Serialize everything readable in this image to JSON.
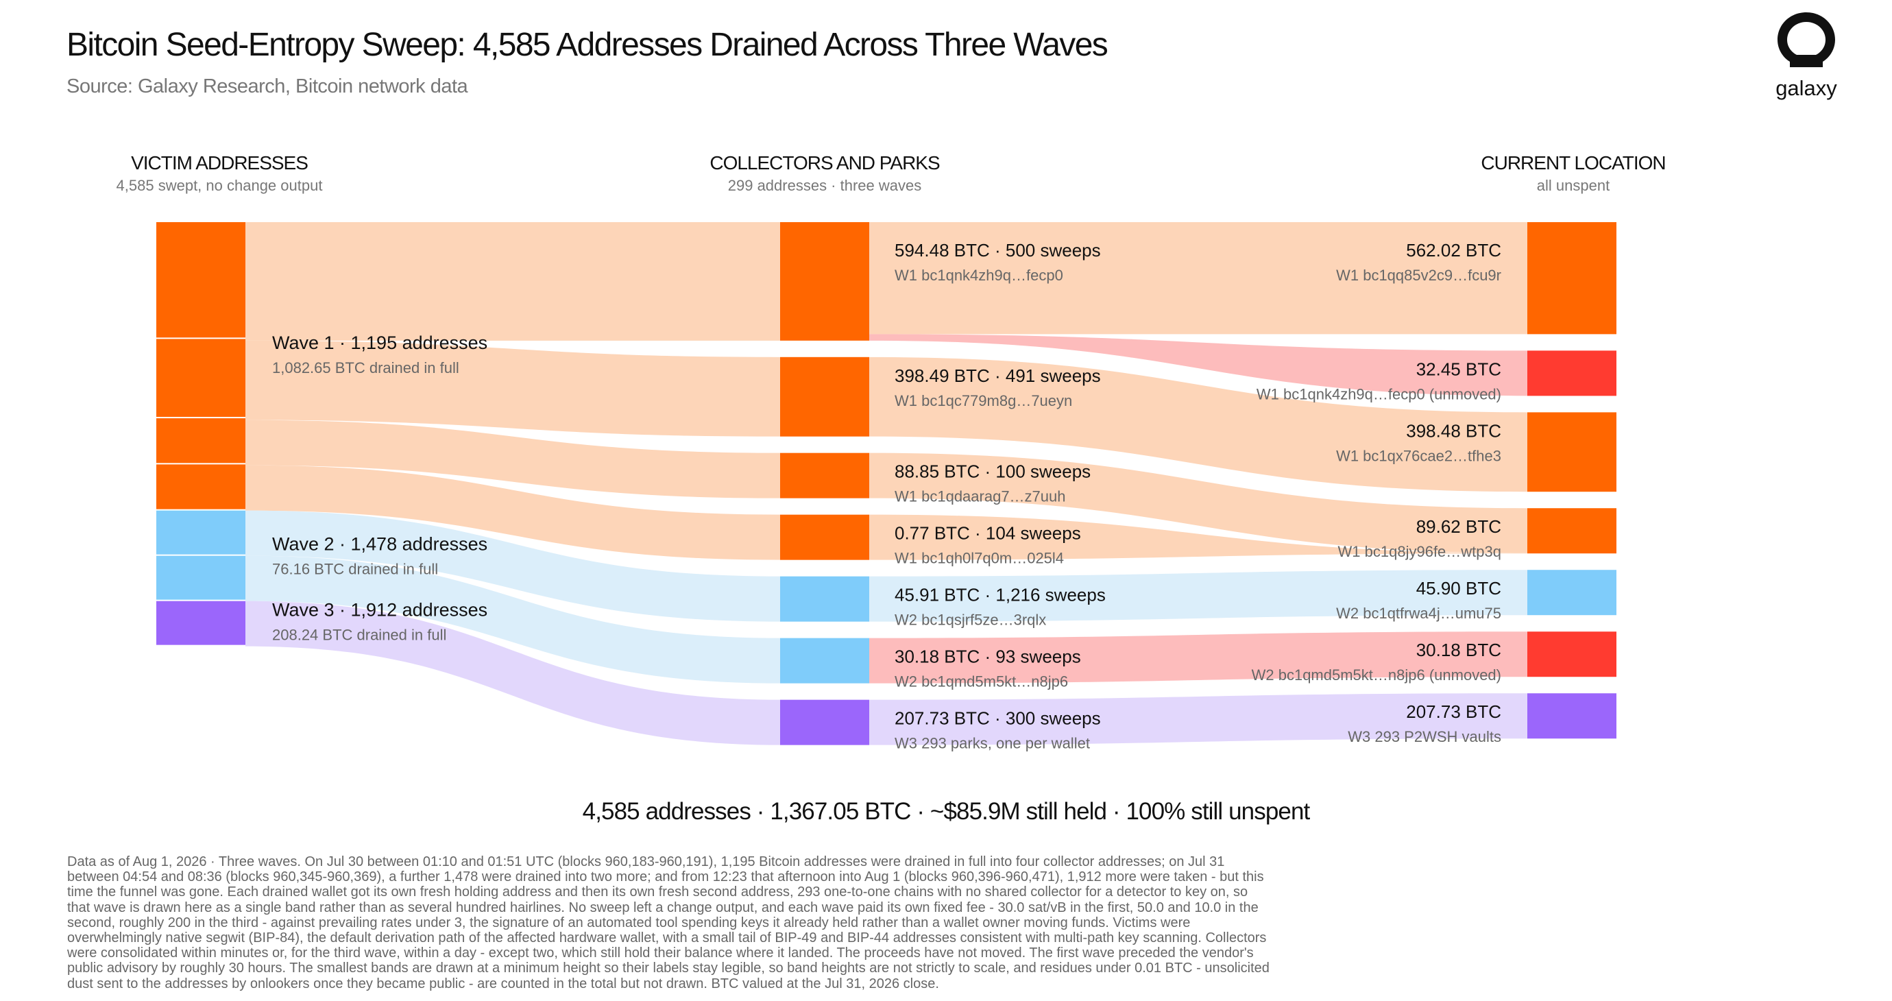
{
  "header": {
    "title": "Bitcoin Seed-Entropy Sweep: 4,585 Addresses Drained Across Three Waves",
    "subtitle": "Source: Galaxy Research, Bitcoin network data",
    "logo_text": "galaxy"
  },
  "columns": [
    {
      "title": "VICTIM ADDRESSES",
      "subtitle": "4,585 swept, no change output"
    },
    {
      "title": "COLLECTORS AND PARKS",
      "subtitle": "299 addresses · three waves"
    },
    {
      "title": "CURRENT LOCATION",
      "subtitle": "all unspent"
    }
  ],
  "colors": {
    "wave1_node": "#ff6600",
    "wave1_band": "#fdd5b8",
    "wave2_node": "#7fccfa",
    "wave2_band": "#dbeefa",
    "wave3_node": "#9b66fb",
    "wave3_band": "#e2d7fc",
    "unmoved_node": "#ff3b30",
    "unmoved_band": "#fdbcbc"
  },
  "chart_data": {
    "type": "sankey",
    "unit": "BTC",
    "waves": [
      {
        "id": "W1",
        "label": "Wave 1 · 1,195 addresses",
        "detail": "1,082.65 BTC drained in full",
        "addresses": 1195,
        "btc": 1082.65
      },
      {
        "id": "W2",
        "label": "Wave 2 · 1,478 addresses",
        "detail": "76.16 BTC drained in full",
        "addresses": 1478,
        "btc": 76.16
      },
      {
        "id": "W3",
        "label": "Wave 3 · 1,912 addresses",
        "detail": "208.24 BTC drained in full",
        "addresses": 1912,
        "btc": 208.24
      }
    ],
    "collectors": [
      {
        "wave": "W1",
        "btc": 594.48,
        "sweeps": 500,
        "label": "594.48 BTC · 500 sweeps",
        "sub": "W1 bc1qnk4zh9q…fecp0"
      },
      {
        "wave": "W1",
        "btc": 398.49,
        "sweeps": 491,
        "label": "398.49 BTC · 491 sweeps",
        "sub": "W1 bc1qc779m8g…7ueyn"
      },
      {
        "wave": "W1",
        "btc": 88.85,
        "sweeps": 100,
        "label": "88.85 BTC · 100 sweeps",
        "sub": "W1 bc1qdaarag7…z7uuh"
      },
      {
        "wave": "W1",
        "btc": 0.77,
        "sweeps": 104,
        "label": "0.77 BTC · 104 sweeps",
        "sub": "W1 bc1qh0l7q0m…025l4"
      },
      {
        "wave": "W2",
        "btc": 45.91,
        "sweeps": 1216,
        "label": "45.91 BTC · 1,216 sweeps",
        "sub": "W2 bc1qsjrf5ze…3rqlx"
      },
      {
        "wave": "W2",
        "btc": 30.18,
        "sweeps": 93,
        "label": "30.18 BTC · 93 sweeps",
        "sub": "W2 bc1qmd5m5kt…n8jp6"
      },
      {
        "wave": "W3",
        "btc": 207.73,
        "sweeps": 300,
        "label": "207.73 BTC · 300 sweeps",
        "sub": "W3 293 parks, one per wallet"
      }
    ],
    "destinations": [
      {
        "wave": "W1",
        "btc": 562.02,
        "label": "562.02 BTC",
        "sub": "W1 bc1qq85v2c9…fcu9r"
      },
      {
        "wave": "W1",
        "btc": 32.45,
        "unmoved": true,
        "label": "32.45 BTC",
        "sub": "W1 bc1qnk4zh9q…fecp0 (unmoved)"
      },
      {
        "wave": "W1",
        "btc": 398.48,
        "label": "398.48 BTC",
        "sub": "W1 bc1qx76cae2…tfhe3"
      },
      {
        "wave": "W1",
        "btc": 89.62,
        "label": "89.62 BTC",
        "sub": "W1 bc1q8jy96fe…wtp3q"
      },
      {
        "wave": "W2",
        "btc": 45.9,
        "label": "45.90 BTC",
        "sub": "W2 bc1qtfrwa4j…umu75"
      },
      {
        "wave": "W2",
        "btc": 30.18,
        "unmoved": true,
        "label": "30.18 BTC",
        "sub": "W2 bc1qmd5m5kt…n8jp6 (unmoved)"
      },
      {
        "wave": "W3",
        "btc": 207.73,
        "label": "207.73 BTC",
        "sub": "W3 293 P2WSH vaults"
      }
    ],
    "flows_collector_to_destination": [
      {
        "from": 0,
        "to": 0,
        "btc": 562.02
      },
      {
        "from": 0,
        "to": 1,
        "btc": 32.45
      },
      {
        "from": 1,
        "to": 2,
        "btc": 398.48
      },
      {
        "from": 2,
        "to": 3,
        "btc": 88.85
      },
      {
        "from": 3,
        "to": 3,
        "btc": 0.77
      },
      {
        "from": 4,
        "to": 4,
        "btc": 45.9
      },
      {
        "from": 5,
        "to": 5,
        "btc": 30.18
      },
      {
        "from": 6,
        "to": 6,
        "btc": 207.73
      }
    ]
  },
  "summary": "4,585 addresses · 1,367.05 BTC · ~$85.9M still held · 100% still unspent",
  "footnote": "Data as of Aug 1, 2026 · Three waves. On Jul 30 between 01:10 and 01:51 UTC (blocks 960,183-960,191), 1,195 Bitcoin addresses were drained in full into four collector addresses; on Jul 31 between 04:54 and 08:36 (blocks 960,345-960,369), a further 1,478 were drained into two more; and from 12:23 that afternoon into Aug 1 (blocks 960,396-960,471), 1,912 more were taken - but this time the funnel was gone. Each drained wallet got its own fresh holding address and then its own fresh second address, 293 one-to-one chains with no shared collector for a detector to key on, so that wave is drawn here as a single band rather than as several hundred hairlines. No sweep left a change output, and each wave paid its own fixed fee - 30.0 sat/vB in the first, 50.0 and 10.0 in the second, roughly 200 in the third - against prevailing rates under 3, the signature of an automated tool spending keys it already held rather than a wallet owner moving funds. Victims were overwhelmingly native segwit (BIP-84), the default derivation path of the affected hardware wallet, with a small tail of BIP-49 and BIP-44 addresses consistent with multi-path key scanning. Collectors were consolidated within minutes or, for the third wave, within a day - except two, which still hold their balance where it landed. The proceeds have not moved. The first wave preceded the vendor's public advisory by roughly 30 hours. The smallest bands are drawn at a minimum height so their labels stay legible, so band heights are not strictly to scale, and residues under 0.01 BTC - unsolicited dust sent to the addresses by onlookers once they became public - are counted in the total but not drawn. BTC valued at the Jul 31, 2026 close."
}
